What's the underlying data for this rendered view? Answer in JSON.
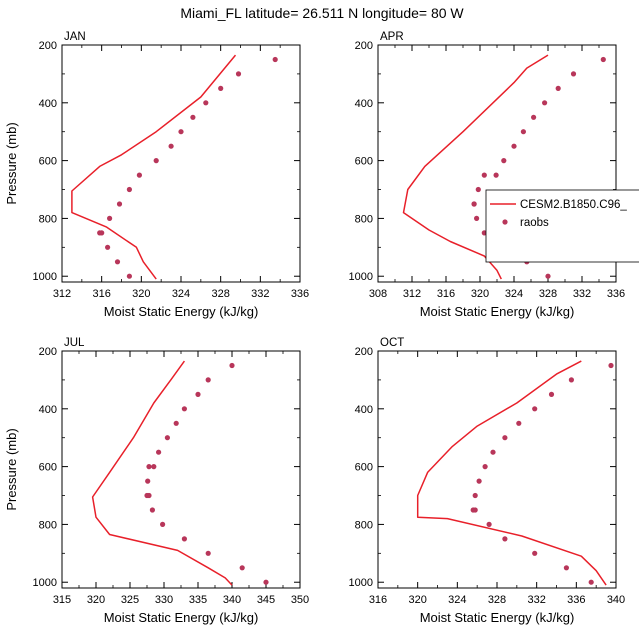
{
  "title": "Miami_FL  latitude= 26.511 N longitude= 80 W",
  "legend": {
    "model_label": "CESM2.B1850.C96_",
    "obs_label": "raobs"
  },
  "colors": {
    "model_line": "#e8202a",
    "obs_marker": "#b8365a",
    "axis": "#000000"
  },
  "chart_data": [
    {
      "type": "line",
      "panel": "JAN",
      "xlabel": "Moist Static Energy (kJ/kg)",
      "ylabel": "Pressure (mb)",
      "xlim": [
        312,
        336
      ],
      "xticks": [
        312,
        316,
        320,
        324,
        328,
        332,
        336
      ],
      "ylim": [
        1020,
        200
      ],
      "yticks": [
        200,
        400,
        600,
        800,
        1000
      ],
      "series": [
        {
          "name": "CESM2.B1850.C96_",
          "style": "line",
          "x": [
            329.5,
            326.0,
            321.5,
            318.0,
            315.8,
            313.0,
            313.0,
            316.5,
            319.5,
            320.2,
            321.5
          ],
          "y": [
            235,
            380,
            500,
            580,
            620,
            705,
            780,
            830,
            900,
            950,
            1010
          ]
        },
        {
          "name": "raobs",
          "style": "marker",
          "x": [
            333.5,
            329.8,
            328.0,
            326.5,
            325.2,
            324.0,
            323.0,
            321.5,
            319.8,
            318.8,
            317.8,
            316.8,
            316.0,
            315.8,
            316.6,
            317.6,
            318.8
          ],
          "y": [
            250,
            300,
            350,
            400,
            450,
            500,
            550,
            600,
            650,
            700,
            750,
            800,
            850,
            850,
            900,
            950,
            1000
          ]
        }
      ]
    },
    {
      "type": "line",
      "panel": "APR",
      "xlabel": "Moist Static Energy (kJ/kg)",
      "ylabel": "",
      "xlim": [
        308,
        336
      ],
      "xticks": [
        308,
        312,
        316,
        320,
        324,
        328,
        332,
        336
      ],
      "ylim": [
        1020,
        200
      ],
      "yticks": [
        200,
        400,
        600,
        800,
        1000
      ],
      "series": [
        {
          "name": "CESM2.B1850.C96_",
          "style": "line",
          "x": [
            328.0,
            325.5,
            324.0,
            318.0,
            313.5,
            311.5,
            311.0,
            314.0,
            316.5,
            320.5,
            322.0,
            322.5
          ],
          "y": [
            235,
            280,
            330,
            500,
            620,
            700,
            780,
            840,
            880,
            930,
            980,
            1010
          ]
        },
        {
          "name": "raobs",
          "style": "marker",
          "x": [
            334.5,
            331.0,
            329.2,
            327.6,
            326.3,
            325.1,
            324.0,
            322.8,
            321.9,
            320.5,
            319.8,
            319.3,
            319.3,
            319.6,
            320.5,
            322.5,
            325.5,
            328.0
          ],
          "y": [
            250,
            300,
            350,
            400,
            450,
            500,
            550,
            600,
            650,
            650,
            700,
            750,
            750,
            800,
            850,
            900,
            950,
            1000
          ]
        }
      ]
    },
    {
      "type": "line",
      "panel": "JUL",
      "xlabel": "Moist Static Energy (kJ/kg)",
      "ylabel": "Pressure (mb)",
      "xlim": [
        315,
        350
      ],
      "xticks": [
        315,
        320,
        325,
        330,
        335,
        340,
        345,
        350
      ],
      "ylim": [
        1020,
        200
      ],
      "yticks": [
        200,
        400,
        600,
        800,
        1000
      ],
      "series": [
        {
          "name": "CESM2.B1850.C96_",
          "style": "line",
          "x": [
            333.0,
            331.0,
            328.5,
            325.5,
            322.0,
            319.5,
            320.0,
            322.0,
            332.0,
            336.5,
            339.0,
            340.0
          ],
          "y": [
            235,
            300,
            380,
            500,
            620,
            705,
            775,
            835,
            890,
            950,
            985,
            1010
          ]
        },
        {
          "name": "raobs",
          "style": "marker",
          "x": [
            340.0,
            336.5,
            335.0,
            333.0,
            331.8,
            330.5,
            329.2,
            328.5,
            327.8,
            327.6,
            327.5,
            327.8,
            328.3,
            329.8,
            333.0,
            336.5,
            341.5,
            345.0
          ],
          "y": [
            250,
            300,
            350,
            400,
            450,
            500,
            550,
            600,
            600,
            650,
            700,
            700,
            750,
            800,
            850,
            900,
            950,
            1000
          ]
        }
      ]
    },
    {
      "type": "line",
      "panel": "OCT",
      "xlabel": "Moist Static Energy (kJ/kg)",
      "ylabel": "",
      "xlim": [
        316,
        340
      ],
      "xticks": [
        316,
        320,
        324,
        328,
        332,
        336,
        340
      ],
      "ylim": [
        1020,
        200
      ],
      "yticks": [
        200,
        400,
        600,
        800,
        1000
      ],
      "series": [
        {
          "name": "CESM2.B1850.C96_",
          "style": "line",
          "x": [
            336.5,
            334.0,
            330.0,
            326.0,
            323.5,
            321.0,
            320.0,
            320.0,
            323.0,
            330.5,
            336.5,
            338.0,
            339.0
          ],
          "y": [
            235,
            280,
            380,
            460,
            530,
            620,
            700,
            775,
            780,
            840,
            910,
            960,
            1010
          ]
        },
        {
          "name": "raobs",
          "style": "marker",
          "x": [
            339.5,
            335.5,
            333.5,
            331.8,
            330.2,
            328.8,
            327.6,
            326.8,
            326.2,
            325.8,
            325.6,
            325.8,
            327.2,
            328.8,
            331.8,
            335.0,
            337.5
          ],
          "y": [
            250,
            300,
            350,
            400,
            450,
            500,
            550,
            600,
            650,
            700,
            750,
            750,
            800,
            850,
            900,
            950,
            1000
          ]
        }
      ]
    }
  ]
}
